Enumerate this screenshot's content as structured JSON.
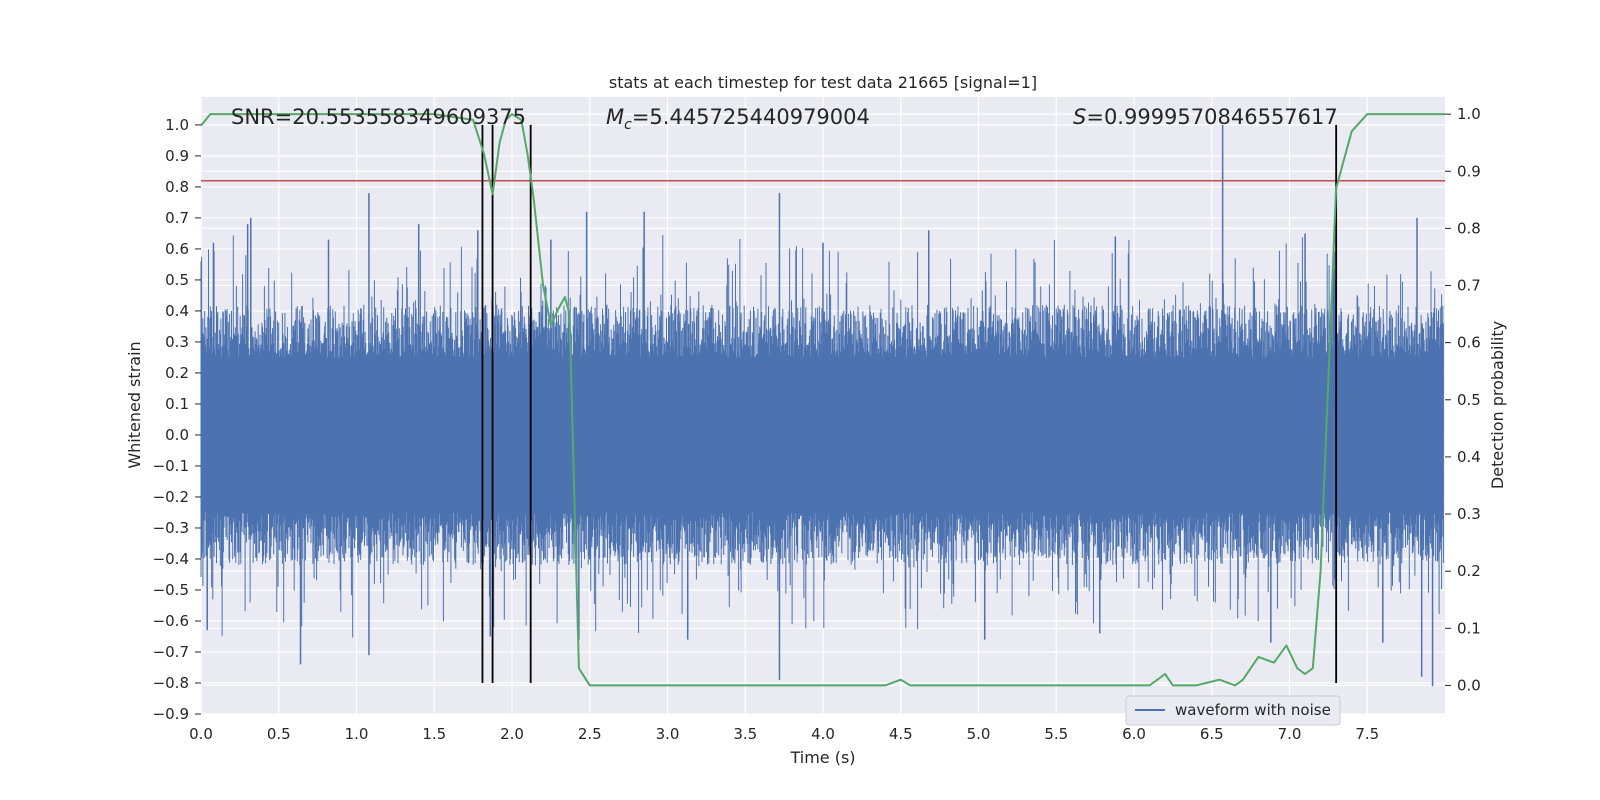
{
  "chart_data": {
    "type": "line",
    "title": "stats at each timestep for test data 21665 [signal=1]",
    "xlabel": "Time (s)",
    "ylabel": "Whitened strain",
    "ylabel_right": "Detection probability",
    "xlim": [
      0.0,
      8.0
    ],
    "ylim": [
      -0.9,
      1.09
    ],
    "ylim_right": [
      -0.05,
      1.03
    ],
    "x_ticks": [
      0.0,
      0.5,
      1.0,
      1.5,
      2.0,
      2.5,
      3.0,
      3.5,
      4.0,
      4.5,
      5.0,
      5.5,
      6.0,
      6.5,
      7.0,
      7.5
    ],
    "x_tick_labels": [
      "0.0",
      "0.5",
      "1.0",
      "1.5",
      "2.0",
      "2.5",
      "3.0",
      "3.5",
      "4.0",
      "4.5",
      "5.0",
      "5.5",
      "6.0",
      "6.5",
      "7.0",
      "7.5"
    ],
    "y_ticks": [
      1.0,
      0.9,
      0.8,
      0.7,
      0.6,
      0.5,
      0.4,
      0.3,
      0.2,
      0.1,
      0.0,
      -0.1,
      -0.2,
      -0.3,
      -0.4,
      -0.5,
      -0.6,
      -0.7,
      -0.8,
      -0.9
    ],
    "y_tick_labels": [
      "1.0",
      "0.9",
      "0.8",
      "0.7",
      "0.6",
      "0.5",
      "0.4",
      "0.3",
      "0.2",
      "0.1",
      "0.0",
      "−0.1",
      "−0.2",
      "−0.3",
      "−0.4",
      "−0.5",
      "−0.6",
      "−0.7",
      "−0.8",
      "−0.9"
    ],
    "y_right_ticks": [
      1.0,
      0.9,
      0.8,
      0.7,
      0.6,
      0.5,
      0.4,
      0.3,
      0.2,
      0.1,
      0.0
    ],
    "y_right_tick_labels": [
      "1.0",
      "0.9",
      "0.8",
      "0.7",
      "0.6",
      "0.5",
      "0.4",
      "0.3",
      "0.2",
      "0.1",
      "0.0"
    ],
    "annotations": {
      "snr": "SNR=20.553558349609375",
      "mc_symbol": "M",
      "mc_subscript": "c",
      "mc_value": "=5.445725440979004",
      "s_symbol": "S",
      "s_value": "=0.9999570846557617"
    },
    "legend": {
      "label": "waveform with noise",
      "position": "lower-right"
    },
    "threshold": {
      "y": 0.82,
      "color": "#c44e52"
    },
    "vertical_lines": [
      1.81,
      1.875,
      2.12,
      7.3
    ],
    "vertical_line_range": [
      -0.8,
      1.0
    ],
    "waveform": {
      "name": "waveform with noise",
      "color": "#4c72b0",
      "x_range": [
        0.0,
        7.99
      ],
      "typical_abs_range": [
        0.25,
        0.42
      ],
      "spikes_pos": [
        [
          0.08,
          0.62
        ],
        [
          0.3,
          0.68
        ],
        [
          0.32,
          0.7
        ],
        [
          0.82,
          0.63
        ],
        [
          1.08,
          0.78
        ],
        [
          1.4,
          0.68
        ],
        [
          1.78,
          0.66
        ],
        [
          2.25,
          0.63
        ],
        [
          2.48,
          0.72
        ],
        [
          2.85,
          0.72
        ],
        [
          3.72,
          0.78
        ],
        [
          4.0,
          0.62
        ],
        [
          4.68,
          0.66
        ],
        [
          5.88,
          0.64
        ],
        [
          6.57,
          1.0
        ],
        [
          7.1,
          0.65
        ],
        [
          7.3,
          0.65
        ],
        [
          7.82,
          0.7
        ]
      ],
      "spikes_neg": [
        [
          0.04,
          -0.63
        ],
        [
          0.64,
          -0.74
        ],
        [
          1.08,
          -0.71
        ],
        [
          1.86,
          -0.65
        ],
        [
          2.43,
          -0.66
        ],
        [
          3.13,
          -0.66
        ],
        [
          3.72,
          -0.79
        ],
        [
          5.04,
          -0.66
        ],
        [
          5.78,
          -0.64
        ],
        [
          6.88,
          -0.67
        ],
        [
          7.6,
          -0.67
        ],
        [
          7.85,
          -0.78
        ],
        [
          7.92,
          -0.81
        ]
      ]
    },
    "probability": {
      "name": "detection probability",
      "color": "#55a868",
      "axis": "right",
      "x": [
        0.0,
        0.06,
        0.5,
        1.0,
        1.5,
        1.75,
        1.82,
        1.875,
        1.92,
        1.96,
        2.0,
        2.06,
        2.1,
        2.14,
        2.2,
        2.25,
        2.3,
        2.34,
        2.37,
        2.43,
        2.5,
        2.75,
        3.0,
        3.5,
        4.0,
        4.4,
        4.5,
        4.56,
        4.7,
        5.0,
        5.5,
        5.9,
        6.0,
        6.1,
        6.2,
        6.25,
        6.4,
        6.55,
        6.65,
        6.7,
        6.8,
        6.9,
        6.98,
        7.05,
        7.1,
        7.15,
        7.2,
        7.3,
        7.4,
        7.5,
        8.0
      ],
      "y": [
        0.98,
        1.0,
        1.0,
        1.0,
        1.0,
        0.99,
        0.93,
        0.86,
        0.95,
        0.99,
        1.0,
        0.99,
        0.93,
        0.85,
        0.7,
        0.63,
        0.66,
        0.68,
        0.65,
        0.03,
        0.0,
        0.0,
        0.0,
        0.0,
        0.0,
        0.0,
        0.01,
        0.0,
        0.0,
        0.0,
        0.0,
        0.0,
        0.0,
        0.0,
        0.02,
        0.0,
        0.0,
        0.01,
        0.0,
        0.01,
        0.05,
        0.04,
        0.07,
        0.03,
        0.02,
        0.03,
        0.2,
        0.87,
        0.97,
        1.0,
        1.0
      ]
    }
  }
}
